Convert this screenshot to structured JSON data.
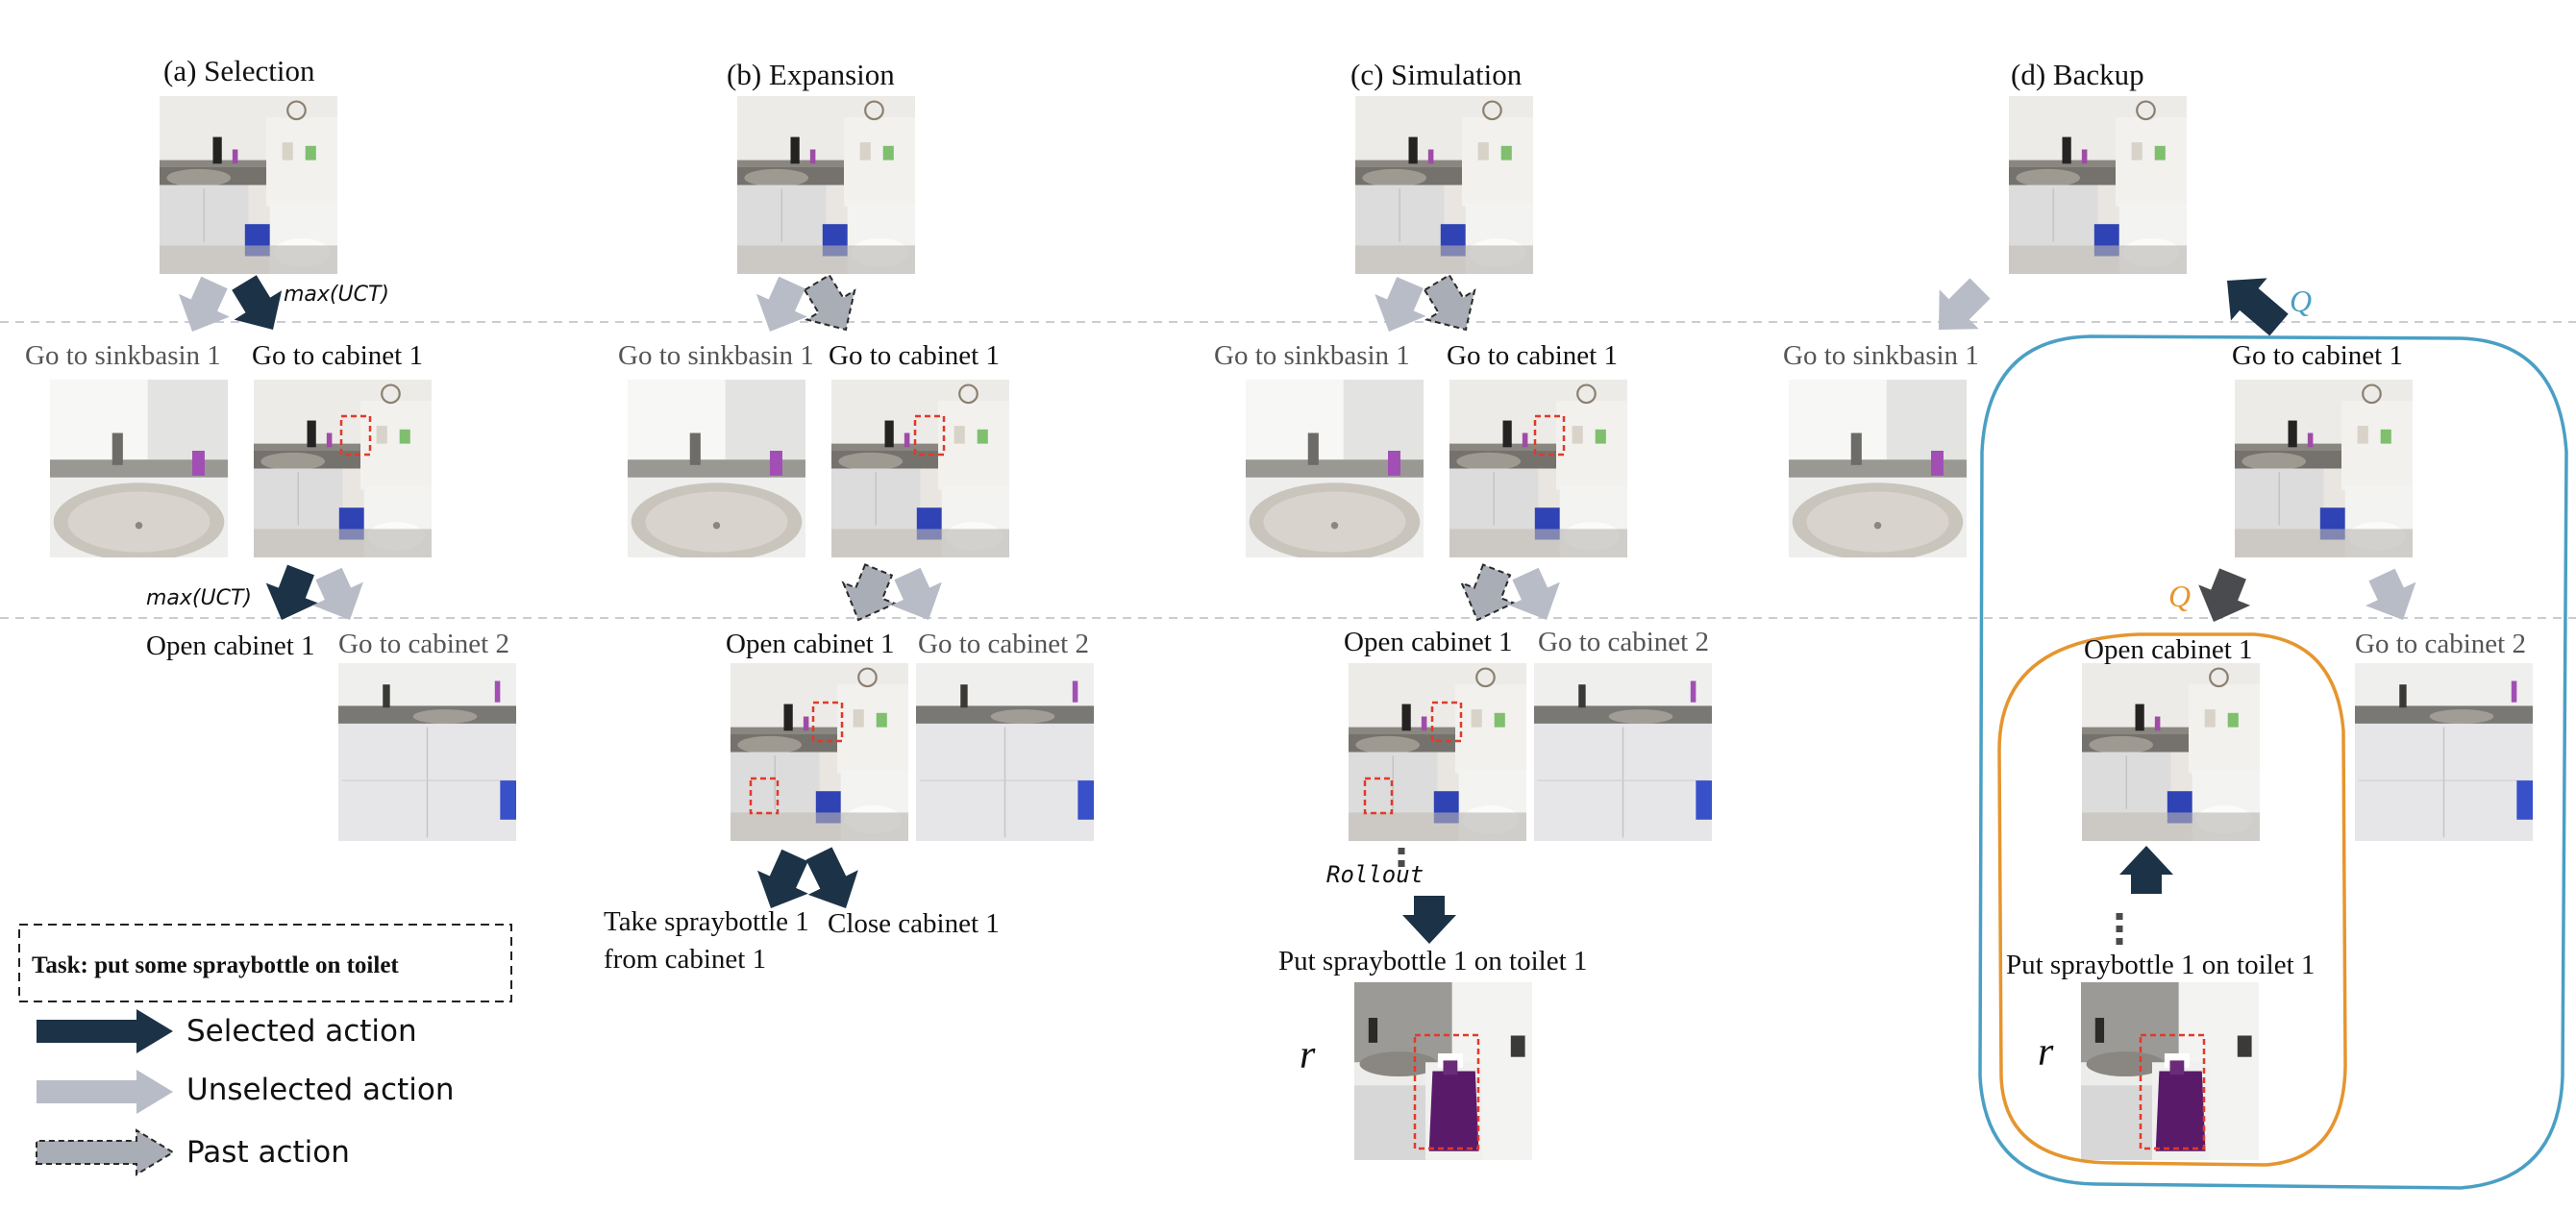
{
  "panels": [
    {
      "title": "(a) Selection"
    },
    {
      "title": "(b) Expansion"
    },
    {
      "title": "(c) Simulation"
    },
    {
      "title": "(d) Backup"
    }
  ],
  "actions": {
    "go_sinkbasin_1": "Go to sinkbasin 1",
    "go_cabinet_1": "Go to cabinet 1",
    "go_cabinet_2": "Go to cabinet 2",
    "open_cabinet_1": "Open cabinet 1",
    "take_spraybottle_1": "Take spraybottle 1",
    "from_cabinet_1": "from cabinet 1",
    "close_cabinet_1": "Close cabinet 1",
    "put_spraybottle": "Put spraybottle 1 on toilet 1"
  },
  "annotations": {
    "max_uct": "max(UCT)",
    "rollout": "Rollout",
    "reward": "r",
    "q_value": "Q"
  },
  "legend": {
    "task": "Task: put some spraybottle on toilet",
    "selected": "Selected action",
    "unselected": "Unselected action",
    "past": "Past action"
  },
  "colors": {
    "selected_arrow": "#1c3247",
    "unselected_arrow": "#b8bcc6",
    "past_arrow": "#a9adb6",
    "highlight_box": "#e03a2a",
    "backup_outer": "#4a9fc4",
    "backup_inner": "#e6952e",
    "separator": "#c9cdd3"
  }
}
